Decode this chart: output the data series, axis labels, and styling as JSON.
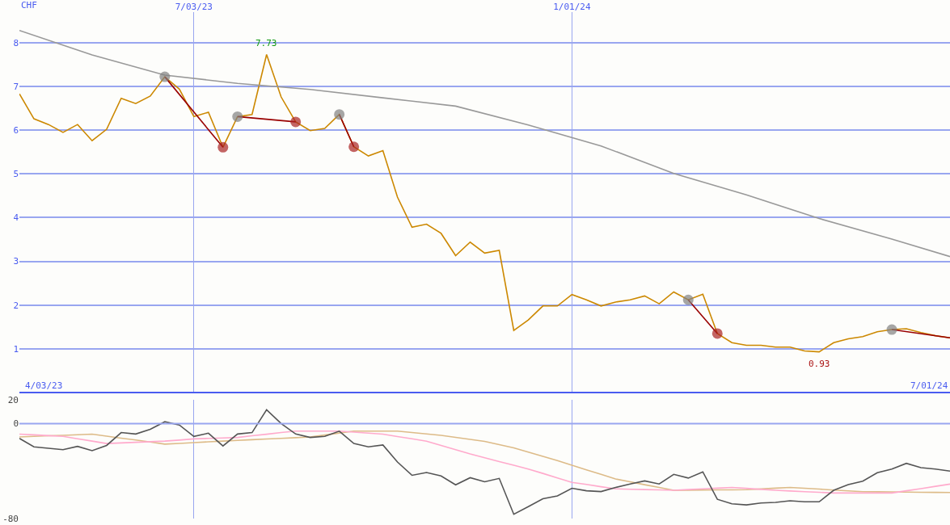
{
  "chart_data": [
    {
      "type": "line",
      "ylabel": "CHF",
      "grid": true,
      "x": [
        "2023-04-10",
        "2023-04-17",
        "2023-04-24",
        "2023-05-01",
        "2023-05-08",
        "2023-05-15",
        "2023-05-22",
        "2023-05-29",
        "2023-06-05",
        "2023-06-12",
        "2023-06-19",
        "2023-06-26",
        "2023-07-03",
        "2023-07-10",
        "2023-07-17",
        "2023-07-24",
        "2023-07-31",
        "2023-08-07",
        "2023-08-14",
        "2023-08-21",
        "2023-08-28",
        "2023-09-04",
        "2023-09-11",
        "2023-09-18",
        "2023-09-25",
        "2023-10-02",
        "2023-10-09",
        "2023-10-16",
        "2023-10-23",
        "2023-10-30",
        "2023-11-06",
        "2023-11-13",
        "2023-11-20",
        "2023-11-27",
        "2023-12-04",
        "2023-12-11",
        "2023-12-18",
        "2023-12-25",
        "2024-01-01",
        "2024-01-08",
        "2024-01-15",
        "2024-01-22",
        "2024-01-29",
        "2024-02-05",
        "2024-02-12",
        "2024-02-19",
        "2024-02-26",
        "2024-03-04",
        "2024-03-11",
        "2024-03-18",
        "2024-03-25",
        "2024-04-01",
        "2024-04-08",
        "2024-04-15",
        "2024-04-22",
        "2024-04-29",
        "2024-05-06",
        "2024-05-13",
        "2024-05-20",
        "2024-05-27",
        "2024-06-03",
        "2024-06-10",
        "2024-06-17",
        "2024-06-24",
        "2024-07-01"
      ],
      "xlim": [
        "2023-04-10",
        "2024-07-01"
      ],
      "xticks": [
        {
          "value": "2023-07-03",
          "label": "7/03/23"
        },
        {
          "value": "2024-01-01",
          "label": "1/01/24"
        }
      ],
      "ylim": [
        0,
        8.7
      ],
      "yticks": [
        1,
        2,
        3,
        4,
        5,
        6,
        7,
        8
      ],
      "series": [
        {
          "color": "#cc8800",
          "values": [
            6.83,
            6.26,
            6.13,
            5.95,
            6.13,
            5.76,
            6.02,
            6.73,
            6.61,
            6.78,
            7.22,
            6.94,
            6.31,
            6.41,
            5.61,
            6.31,
            6.36,
            7.73,
            6.76,
            6.19,
            5.99,
            6.04,
            6.36,
            5.62,
            5.41,
            5.53,
            4.47,
            3.78,
            3.85,
            3.64,
            3.13,
            3.44,
            3.19,
            3.25,
            1.42,
            1.66,
            1.98,
            1.98,
            2.24,
            2.12,
            1.98,
            2.07,
            2.12,
            2.21,
            2.03,
            2.3,
            2.12,
            2.25,
            1.35,
            1.14,
            1.08,
            1.08,
            1.04,
            1.04,
            0.95,
            0.93,
            1.14,
            1.23,
            1.28,
            1.39,
            1.44,
            1.46,
            1.37,
            1.3,
            1.25
          ]
        },
        {
          "color": "#999999",
          "x": [
            "2023-04-10",
            "2023-05-15",
            "2023-06-19",
            "2023-07-24",
            "2023-08-28",
            "2023-10-02",
            "2023-11-06",
            "2023-12-11",
            "2024-01-15",
            "2024-02-19",
            "2024-03-25",
            "2024-04-29",
            "2024-06-03",
            "2024-07-01"
          ],
          "values": [
            8.28,
            7.72,
            7.26,
            7.07,
            6.93,
            6.74,
            6.55,
            6.12,
            5.64,
            5.01,
            4.52,
            3.98,
            3.51,
            3.11
          ]
        },
        {
          "color": "#990000",
          "marker": "circle",
          "x": [
            "2023-06-19",
            "2023-07-17",
            null,
            "2023-07-24",
            "2023-08-21",
            null,
            "2023-09-11",
            "2023-09-18",
            null,
            "2024-02-26",
            "2024-03-11",
            null,
            "2024-06-03",
            "2024-07-01"
          ],
          "values": [
            7.22,
            5.61,
            null,
            6.31,
            6.19,
            null,
            6.36,
            5.62,
            null,
            2.12,
            1.35,
            null,
            1.44,
            1.25
          ],
          "colors": [
            "#808080",
            "#aa2222",
            null,
            "#808080",
            "#aa2222",
            null,
            "#808080",
            "#aa2222",
            null,
            "#808080",
            "#aa2222",
            null,
            "#808080",
            null
          ]
        }
      ],
      "annotations": [
        {
          "text": "7.73",
          "x": "2023-08-07",
          "y": 7.73
        },
        {
          "text": "0.93",
          "x": "2024-04-29",
          "y": 0.93
        },
        "4/03/23",
        "7/01/24"
      ]
    },
    {
      "type": "line",
      "grid": "x",
      "tick_labels": "y",
      "ref_lines": [
        {
          "axis": "y",
          "value": 0,
          "color": "#99a6f0"
        }
      ],
      "x": [
        "2023-04-10",
        "2023-04-17",
        "2023-04-24",
        "2023-05-01",
        "2023-05-08",
        "2023-05-15",
        "2023-05-22",
        "2023-05-29",
        "2023-06-05",
        "2023-06-12",
        "2023-06-19",
        "2023-06-26",
        "2023-07-03",
        "2023-07-10",
        "2023-07-17",
        "2023-07-24",
        "2023-07-31",
        "2023-08-07",
        "2023-08-14",
        "2023-08-21",
        "2023-08-28",
        "2023-09-04",
        "2023-09-11",
        "2023-09-18",
        "2023-09-25",
        "2023-10-02",
        "2023-10-09",
        "2023-10-16",
        "2023-10-23",
        "2023-10-30",
        "2023-11-06",
        "2023-11-13",
        "2023-11-20",
        "2023-11-27",
        "2023-12-04",
        "2023-12-11",
        "2023-12-18",
        "2023-12-25",
        "2024-01-01",
        "2024-01-08",
        "2024-01-15",
        "2024-01-22",
        "2024-01-29",
        "2024-02-05",
        "2024-02-12",
        "2024-02-19",
        "2024-02-26",
        "2024-03-04",
        "2024-03-11",
        "2024-03-18",
        "2024-03-25",
        "2024-04-01",
        "2024-04-08",
        "2024-04-15",
        "2024-04-22",
        "2024-04-29",
        "2024-05-06",
        "2024-05-13",
        "2024-05-20",
        "2024-05-27",
        "2024-06-03",
        "2024-06-10",
        "2024-06-17",
        "2024-06-24",
        "2024-07-01"
      ],
      "xlim": [
        "2023-04-10",
        "2024-07-01"
      ],
      "xticks": [
        {
          "value": "2023-07-03",
          "label": null
        },
        {
          "value": "2024-01-01",
          "label": null
        }
      ],
      "ylim": [
        -80,
        20
      ],
      "yticks": [
        20,
        0,
        -80
      ],
      "series": [
        {
          "color": "#ddbb88",
          "values": [
            -11.3,
            -10.8,
            -10.3,
            -9.9,
            -9.4,
            -8.9,
            -10.6,
            -12.3,
            -13.9,
            -15.6,
            -17.3,
            -16.7,
            -16.1,
            -15.4,
            -14.8,
            -14.2,
            -13.6,
            -13.0,
            -12.5,
            -11.9,
            -11.3,
            -9.7,
            -8.0,
            -6.4,
            -6.4,
            -6.4,
            -6.4,
            -7.6,
            -8.7,
            -9.9,
            -11.6,
            -13.3,
            -15.0,
            -17.8,
            -20.5,
            -24.1,
            -27.6,
            -31.2,
            -35.1,
            -39.0,
            -42.8,
            -46.7,
            -49.1,
            -51.5,
            -53.8,
            -56.2,
            -56.1,
            -56.0,
            -55.9,
            -55.8,
            -55.7,
            -55.1,
            -54.4,
            -53.8,
            -54.5,
            -55.2,
            -56.0,
            -56.7,
            -57.4,
            -57.5,
            -57.6,
            -57.7,
            -57.9,
            -58.0,
            -58.1
          ]
        },
        {
          "color": "#ffaacc",
          "values": [
            -8.9,
            -9.5,
            -10.2,
            -10.8,
            -12.8,
            -14.8,
            -16.8,
            -16.3,
            -15.8,
            -15.3,
            -14.8,
            -13.9,
            -12.9,
            -12.5,
            -12.1,
            -11.7,
            -10.3,
            -9.0,
            -7.6,
            -6.4,
            -6.4,
            -6.4,
            -6.4,
            -7.2,
            -8.1,
            -8.9,
            -10.9,
            -12.8,
            -14.8,
            -18.4,
            -22.0,
            -25.6,
            -28.8,
            -32.0,
            -35.1,
            -38.3,
            -42.0,
            -45.8,
            -49.5,
            -51.3,
            -53.2,
            -55.0,
            -55.3,
            -55.6,
            -55.9,
            -56.2,
            -55.6,
            -55.0,
            -54.4,
            -53.8,
            -54.6,
            -55.4,
            -56.2,
            -56.8,
            -57.4,
            -57.9,
            -58.5,
            -58.5,
            -58.5,
            -58.5,
            -58.5,
            -56.6,
            -54.8,
            -52.9,
            -51.0
          ]
        },
        {
          "color": "#555555",
          "values": [
            -12.5,
            -19.6,
            -20.8,
            -22.0,
            -19.2,
            -22.8,
            -18.4,
            -7.6,
            -8.8,
            -4.8,
            1.5,
            -1.2,
            -10.8,
            -8.1,
            -18.9,
            -8.8,
            -7.6,
            11.6,
            0,
            -8.8,
            -11.7,
            -10.8,
            -6.4,
            -16.8,
            -19.6,
            -18.0,
            -32.4,
            -43.6,
            -41.2,
            -44.1,
            -51.6,
            -45.6,
            -49.0,
            -46.2,
            -76.4,
            -70.0,
            -63.3,
            -61.0,
            -54.5,
            -56.6,
            -57.3,
            -53.8,
            -50.9,
            -48.3,
            -50.9,
            -42.8,
            -45.9,
            -40.7,
            -63.8,
            -67.6,
            -68.5,
            -66.9,
            -66.4,
            -65.0,
            -65.9,
            -65.9,
            -56.2,
            -51.4,
            -48.5,
            -41.4,
            -38.3,
            -33.5,
            -37.1,
            -38.3,
            -40.0
          ]
        }
      ]
    }
  ]
}
